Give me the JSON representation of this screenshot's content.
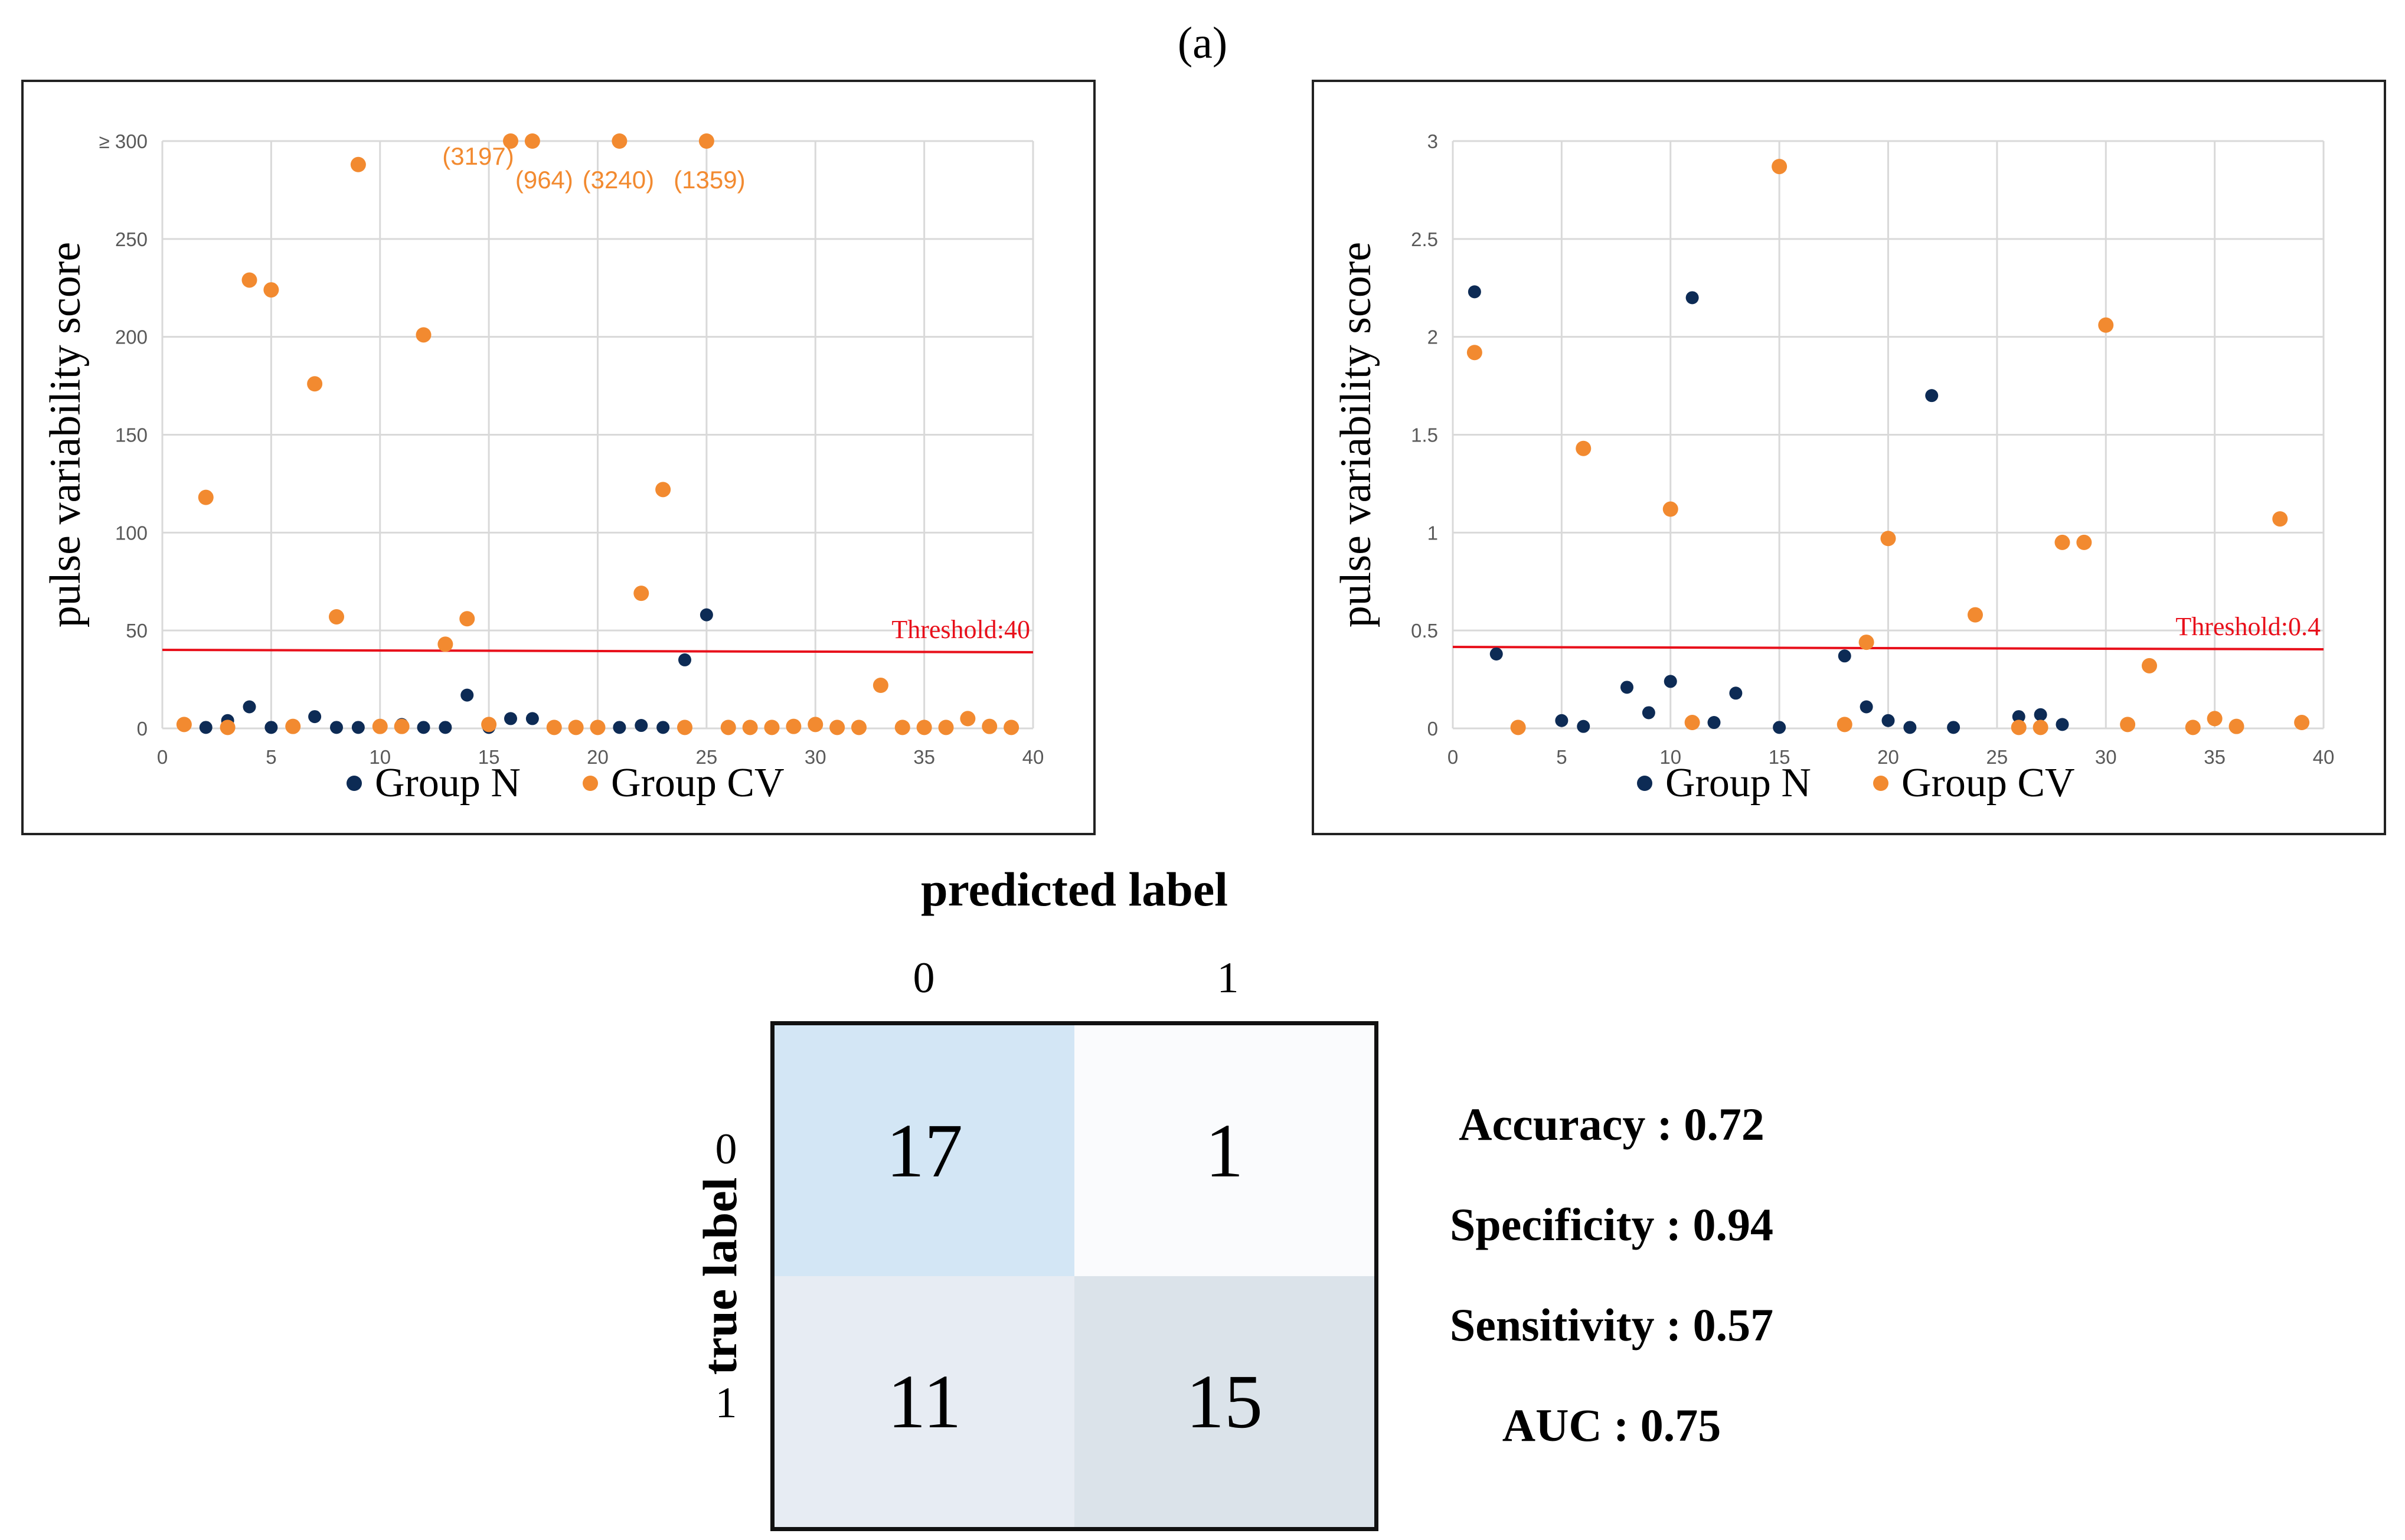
{
  "panel_label": "(a)",
  "chart_data": [
    {
      "type": "scatter",
      "title": "",
      "ylabel": "pulse variability score",
      "xlabel": "",
      "xlim": [
        0,
        40
      ],
      "ylim": [
        0,
        300
      ],
      "xticks": [
        0,
        5,
        10,
        15,
        20,
        25,
        30,
        35,
        40
      ],
      "yticks": [
        0,
        50,
        100,
        150,
        200,
        250,
        300
      ],
      "ytick_labels": [
        "0",
        "50",
        "100",
        "150",
        "200",
        "250",
        "≥ 300"
      ],
      "grid": true,
      "legend_position": "bottom",
      "threshold": {
        "value": 39.5,
        "label": "Threshold:40",
        "color": "#e8101b"
      },
      "series": [
        {
          "name": "Group N",
          "color": "#0d2b55",
          "points": [
            [
              2,
              0.5
            ],
            [
              3,
              4
            ],
            [
              4,
              11
            ],
            [
              5,
              0.5
            ],
            [
              6,
              0.5
            ],
            [
              7,
              6
            ],
            [
              8,
              0.5
            ],
            [
              9,
              0.5
            ],
            [
              11,
              2
            ],
            [
              12,
              0.5
            ],
            [
              13,
              0.5
            ],
            [
              14,
              17
            ],
            [
              15,
              0.5
            ],
            [
              16,
              5
            ],
            [
              17,
              5
            ],
            [
              20,
              0.5
            ],
            [
              21,
              0.5
            ],
            [
              22,
              1.5
            ],
            [
              23,
              0.5
            ],
            [
              24,
              35
            ],
            [
              25,
              58
            ]
          ]
        },
        {
          "name": "Group CV",
          "color": "#f28a30",
          "points": [
            [
              1,
              2
            ],
            [
              2,
              118
            ],
            [
              3,
              0.5
            ],
            [
              4,
              229
            ],
            [
              5,
              224
            ],
            [
              6,
              1
            ],
            [
              7,
              176
            ],
            [
              8,
              57
            ],
            [
              9,
              288
            ],
            [
              10,
              1
            ],
            [
              11,
              1
            ],
            [
              12,
              201
            ],
            [
              13,
              43
            ],
            [
              14,
              56
            ],
            [
              15,
              2
            ],
            [
              16,
              300
            ],
            [
              17,
              300
            ],
            [
              18,
              0.5
            ],
            [
              19,
              0.5
            ],
            [
              20,
              0.5
            ],
            [
              21,
              300
            ],
            [
              22,
              69
            ],
            [
              23,
              122
            ],
            [
              24,
              0.5
            ],
            [
              25,
              300
            ],
            [
              26,
              0.5
            ],
            [
              27,
              0.5
            ],
            [
              28,
              0.5
            ],
            [
              29,
              1
            ],
            [
              30,
              2
            ],
            [
              31,
              0.5
            ],
            [
              32,
              0.5
            ],
            [
              33,
              22
            ],
            [
              34,
              0.5
            ],
            [
              35,
              0.5
            ],
            [
              36,
              0.5
            ],
            [
              37,
              5
            ],
            [
              38,
              1
            ],
            [
              39,
              0.5
            ]
          ]
        }
      ],
      "annotations": [
        {
          "text": "(3197)",
          "x": 16,
          "y": 300
        },
        {
          "text": "(964)",
          "x": 17,
          "y": 300
        },
        {
          "text": "(3240)",
          "x": 21,
          "y": 300
        },
        {
          "text": "(1359)",
          "x": 25,
          "y": 300
        }
      ]
    },
    {
      "type": "scatter",
      "title": "",
      "ylabel": "pulse variability score",
      "xlabel": "",
      "xlim": [
        0,
        40
      ],
      "ylim": [
        0,
        3
      ],
      "xticks": [
        0,
        5,
        10,
        15,
        20,
        25,
        30,
        35,
        40
      ],
      "yticks": [
        0,
        0.5,
        1,
        1.5,
        2,
        2.5,
        3
      ],
      "ytick_labels": [
        "0",
        "0.5",
        "1",
        "1.5",
        "2",
        "2.5",
        "3"
      ],
      "grid": true,
      "legend_position": "bottom",
      "threshold": {
        "value": 0.41,
        "label": "Threshold:0.4",
        "color": "#e8101b"
      },
      "series": [
        {
          "name": "Group N",
          "color": "#0d2b55",
          "points": [
            [
              1,
              2.23
            ],
            [
              2,
              0.38
            ],
            [
              5,
              0.04
            ],
            [
              6,
              0.01
            ],
            [
              8,
              0.21
            ],
            [
              9,
              0.08
            ],
            [
              10,
              0.24
            ],
            [
              11,
              2.2
            ],
            [
              12,
              0.03
            ],
            [
              13,
              0.18
            ],
            [
              15,
              0.005
            ],
            [
              18,
              0.37
            ],
            [
              19,
              0.11
            ],
            [
              20,
              0.04
            ],
            [
              21,
              0.005
            ],
            [
              22,
              1.7
            ],
            [
              23,
              0.005
            ],
            [
              26,
              0.06
            ],
            [
              27,
              0.07
            ],
            [
              28,
              0.02
            ]
          ]
        },
        {
          "name": "Group CV",
          "color": "#f28a30",
          "points": [
            [
              1,
              1.92
            ],
            [
              3,
              0.005
            ],
            [
              6,
              1.43
            ],
            [
              10,
              1.12
            ],
            [
              11,
              0.03
            ],
            [
              15,
              2.87
            ],
            [
              18,
              0.02
            ],
            [
              19,
              0.44
            ],
            [
              20,
              0.97
            ],
            [
              24,
              0.58
            ],
            [
              26,
              0.005
            ],
            [
              27,
              0.005
            ],
            [
              28,
              0.95
            ],
            [
              29,
              0.95
            ],
            [
              30,
              2.06
            ],
            [
              31,
              0.02
            ],
            [
              32,
              0.32
            ],
            [
              34,
              0.005
            ],
            [
              35,
              0.05
            ],
            [
              36,
              0.01
            ],
            [
              38,
              1.07
            ],
            [
              39,
              0.03
            ]
          ]
        }
      ],
      "annotations": []
    }
  ],
  "confusion": {
    "title_x": "predicted label",
    "title_y": "true label",
    "col_labels": [
      "0",
      "1"
    ],
    "row_labels": [
      "0",
      "1"
    ],
    "cells": [
      "17",
      "1",
      "11",
      "15"
    ],
    "cell_colors": [
      "#d3e6f5",
      "#fafbfd",
      "#e7ecf3",
      "#dbe3ea"
    ]
  },
  "metrics": [
    "Accuracy : 0.72",
    "Specificity : 0.94",
    "Sensitivity : 0.57",
    "AUC : 0.75"
  ]
}
